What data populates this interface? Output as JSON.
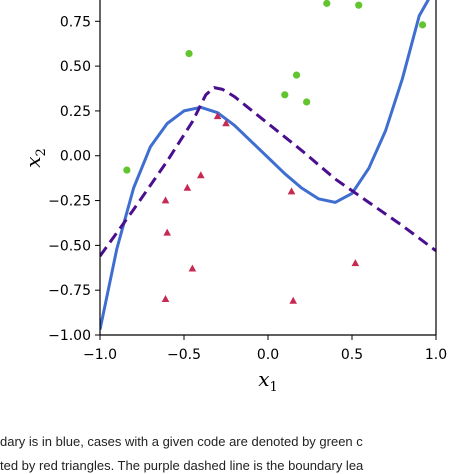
{
  "chart_data": {
    "type": "scatter",
    "xlabel": "x",
    "xlabel_sub": "1",
    "ylabel": "x",
    "ylabel_sub": "2",
    "xlim": [
      -1.0,
      1.0
    ],
    "ylim": [
      -1.0,
      0.88
    ],
    "x_ticks": [
      -1.0,
      -0.5,
      0.0,
      0.5,
      1.0
    ],
    "x_tick_labels": [
      "−1.0",
      "−0.5",
      "0.0",
      "0.5",
      "1.0"
    ],
    "y_ticks": [
      -1.0,
      -0.75,
      -0.5,
      -0.25,
      0.0,
      0.25,
      0.5,
      0.75
    ],
    "y_tick_labels": [
      "−1.00",
      "−0.75",
      "−0.50",
      "−0.25",
      "0.00",
      "0.25",
      "0.50",
      "0.75"
    ],
    "grid": false,
    "colors": {
      "green": "#62c52f",
      "red": "#c62a52",
      "blue": "#3f6ed1",
      "purple": "#4a0f8f"
    },
    "series": [
      {
        "marker": "circle",
        "color": "#62c52f",
        "points": [
          {
            "x": -0.84,
            "y": -0.08
          },
          {
            "x": -0.47,
            "y": 0.57
          },
          {
            "x": 0.1,
            "y": 0.34
          },
          {
            "x": 0.17,
            "y": 0.45
          },
          {
            "x": 0.23,
            "y": 0.3
          },
          {
            "x": 0.35,
            "y": 0.85
          },
          {
            "x": 0.54,
            "y": 0.84
          },
          {
            "x": 0.92,
            "y": 0.73
          }
        ]
      },
      {
        "marker": "triangle",
        "color": "#c62a52",
        "points": [
          {
            "x": -0.61,
            "y": -0.25
          },
          {
            "x": -0.6,
            "y": -0.43
          },
          {
            "x": -0.48,
            "y": -0.18
          },
          {
            "x": -0.4,
            "y": -0.11
          },
          {
            "x": -0.45,
            "y": -0.63
          },
          {
            "x": -0.61,
            "y": -0.8
          },
          {
            "x": -0.3,
            "y": 0.22
          },
          {
            "x": -0.25,
            "y": 0.18
          },
          {
            "x": 0.14,
            "y": -0.2
          },
          {
            "x": 0.15,
            "y": -0.81
          },
          {
            "x": 0.52,
            "y": -0.6
          }
        ]
      },
      {
        "type": "line",
        "style": "solid",
        "color": "#3f6ed1",
        "x": [
          -1.0,
          -0.9,
          -0.8,
          -0.7,
          -0.6,
          -0.5,
          -0.4,
          -0.3,
          -0.2,
          -0.1,
          0.0,
          0.1,
          0.2,
          0.3,
          0.4,
          0.5,
          0.6,
          0.7,
          0.8,
          0.9,
          0.96
        ],
        "y": [
          -0.97,
          -0.52,
          -0.18,
          0.05,
          0.18,
          0.25,
          0.27,
          0.24,
          0.17,
          0.08,
          -0.01,
          -0.1,
          -0.18,
          -0.24,
          -0.26,
          -0.21,
          -0.07,
          0.14,
          0.43,
          0.78,
          0.88
        ]
      },
      {
        "type": "line",
        "style": "dashed",
        "color": "#4a0f8f",
        "x": [
          -1.0,
          -0.8,
          -0.6,
          -0.45,
          -0.37,
          -0.32,
          -0.27,
          -0.2,
          0.0,
          0.2,
          0.4,
          0.6,
          0.8,
          1.0
        ],
        "y": [
          -0.56,
          -0.3,
          -0.03,
          0.19,
          0.34,
          0.38,
          0.37,
          0.33,
          0.18,
          0.03,
          -0.13,
          -0.26,
          -0.39,
          -0.53
        ]
      }
    ]
  },
  "caption": {
    "line1": "dary is in blue, cases with a given code are denoted by green c",
    "line2": "ted by red triangles. The purple dashed line is the boundary lea"
  }
}
